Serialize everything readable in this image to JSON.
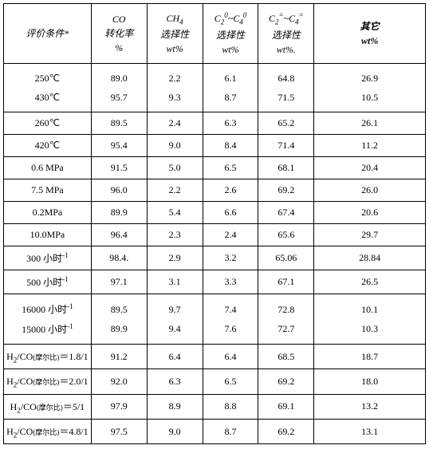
{
  "table": {
    "headers": {
      "h0_l1": "评价条件*",
      "h1_l1": "CO",
      "h1_l2": "转化率",
      "h1_l3": "%",
      "h2_l1": "CH",
      "h2_sub": "4",
      "h2_l2": "选择性",
      "h2_l3": "wt%",
      "h3_pre": "C",
      "h3_sub1": "2",
      "h3_sup1": "0",
      "h3_mid": "~C",
      "h3_sub2": "4",
      "h3_sup2": "0",
      "h3_l2": "选择性",
      "h3_l3": "wt%",
      "h4_pre": "C",
      "h4_sub1": "2",
      "h4_sup1": "=",
      "h4_mid": "~C",
      "h4_sub2": "4",
      "h4_sup2": "=",
      "h4_l2": "选择性",
      "h4_l3": "wt%.",
      "h5_l1": "其它",
      "h5_l2": "wt%"
    },
    "rows": [
      {
        "type": "double",
        "c0a": "250℃",
        "c0b": "430℃",
        "c1a": "89.0",
        "c1b": "95.7",
        "c2a": "2.2",
        "c2b": "9.3",
        "c3a": "6.1",
        "c3b": "8.7",
        "c4a": "64.8",
        "c4b": "71.5",
        "c5a": "26.9",
        "c5b": "10.5"
      },
      {
        "type": "single",
        "c0": "260℃",
        "c1": "89.5",
        "c2": "2.4",
        "c3": "6.3",
        "c4": "65.2",
        "c5": "26.1"
      },
      {
        "type": "single",
        "c0": "420℃",
        "c1": "95.4",
        "c2": "9.0",
        "c3": "8.4",
        "c4": "71.4",
        "c5": "11.2"
      },
      {
        "type": "single",
        "c0": "0.6 MPa",
        "c1": "91.5",
        "c2": "5.0",
        "c3": "6.5",
        "c4": "68.1",
        "c5": "20.4"
      },
      {
        "type": "single",
        "c0": "7.5 MPa",
        "c1": "96.0",
        "c2": "2.2",
        "c3": "2.6",
        "c4": "69.2",
        "c5": "26.0"
      },
      {
        "type": "single",
        "c0": "0.2MPa",
        "c1": "89.9",
        "c2": "5.4",
        "c3": "6.6",
        "c4": "67.4",
        "c5": "20.6"
      },
      {
        "type": "single",
        "c0": "10.0MPa",
        "c1": "96.4",
        "c2": "2.3",
        "c3": "2.4",
        "c4": "65.6",
        "c5": "29.7"
      },
      {
        "type": "sup",
        "c0_pre": "300 小时",
        "c0_sup": "-1",
        "c1": "98.4.",
        "c2": "2.9",
        "c3": "3.2",
        "c4": "65.06",
        "c5": "28.84"
      },
      {
        "type": "sup",
        "c0_pre": "500 小时",
        "c0_sup": "-1",
        "c1": "97.1",
        "c2": "3.1",
        "c3": "3.3",
        "c4": "67.1",
        "c5": "26.5"
      },
      {
        "type": "doublesup",
        "c0a_pre": "16000 小时",
        "c0a_sup": "-1",
        "c0b_pre": "15000 小时",
        "c0b_sup": "-1",
        "c1a": "89.5",
        "c1b": "89.9",
        "c2a": "9.7",
        "c2b": "9.4",
        "c3a": "7.4",
        "c3b": "7.6",
        "c4a": "72.8",
        "c4b": "72.7",
        "c5a": "10.1",
        "c5b": "10.3"
      },
      {
        "type": "ratio",
        "c0_pre": "H",
        "c0_sub1": "2",
        "c0_mid": "/CO",
        "c0_note": "(摩尔比)",
        "c0_post": "＝1.8/1",
        "c1": "91.2",
        "c2": "6.4",
        "c3": "6.4",
        "c4": "68.5",
        "c5": "18.7"
      },
      {
        "type": "ratio",
        "c0_pre": "H",
        "c0_sub1": "2",
        "c0_mid": "/CO",
        "c0_note": "(摩尔比)",
        "c0_post": "＝2.0/1",
        "c1": "92.0",
        "c2": "6.3",
        "c3": "6.5",
        "c4": "69.2",
        "c5": "18.0"
      },
      {
        "type": "ratio",
        "c0_pre": "H",
        "c0_sub1": "2",
        "c0_mid": "/CO",
        "c0_note": "(摩尔比)",
        "c0_post": "＝5/1",
        "c1": "97.9",
        "c2": "8.9",
        "c3": "8.8",
        "c4": "69.1",
        "c5": "13.2"
      },
      {
        "type": "ratio",
        "c0_pre": "H",
        "c0_sub1": "2",
        "c0_mid": "/CO",
        "c0_note": "(摩尔比)",
        "c0_post": "＝4.8/1",
        "c1": "97.5",
        "c2": "9.0",
        "c3": "8.7",
        "c4": "69.2",
        "c5": "13.1"
      }
    ]
  }
}
